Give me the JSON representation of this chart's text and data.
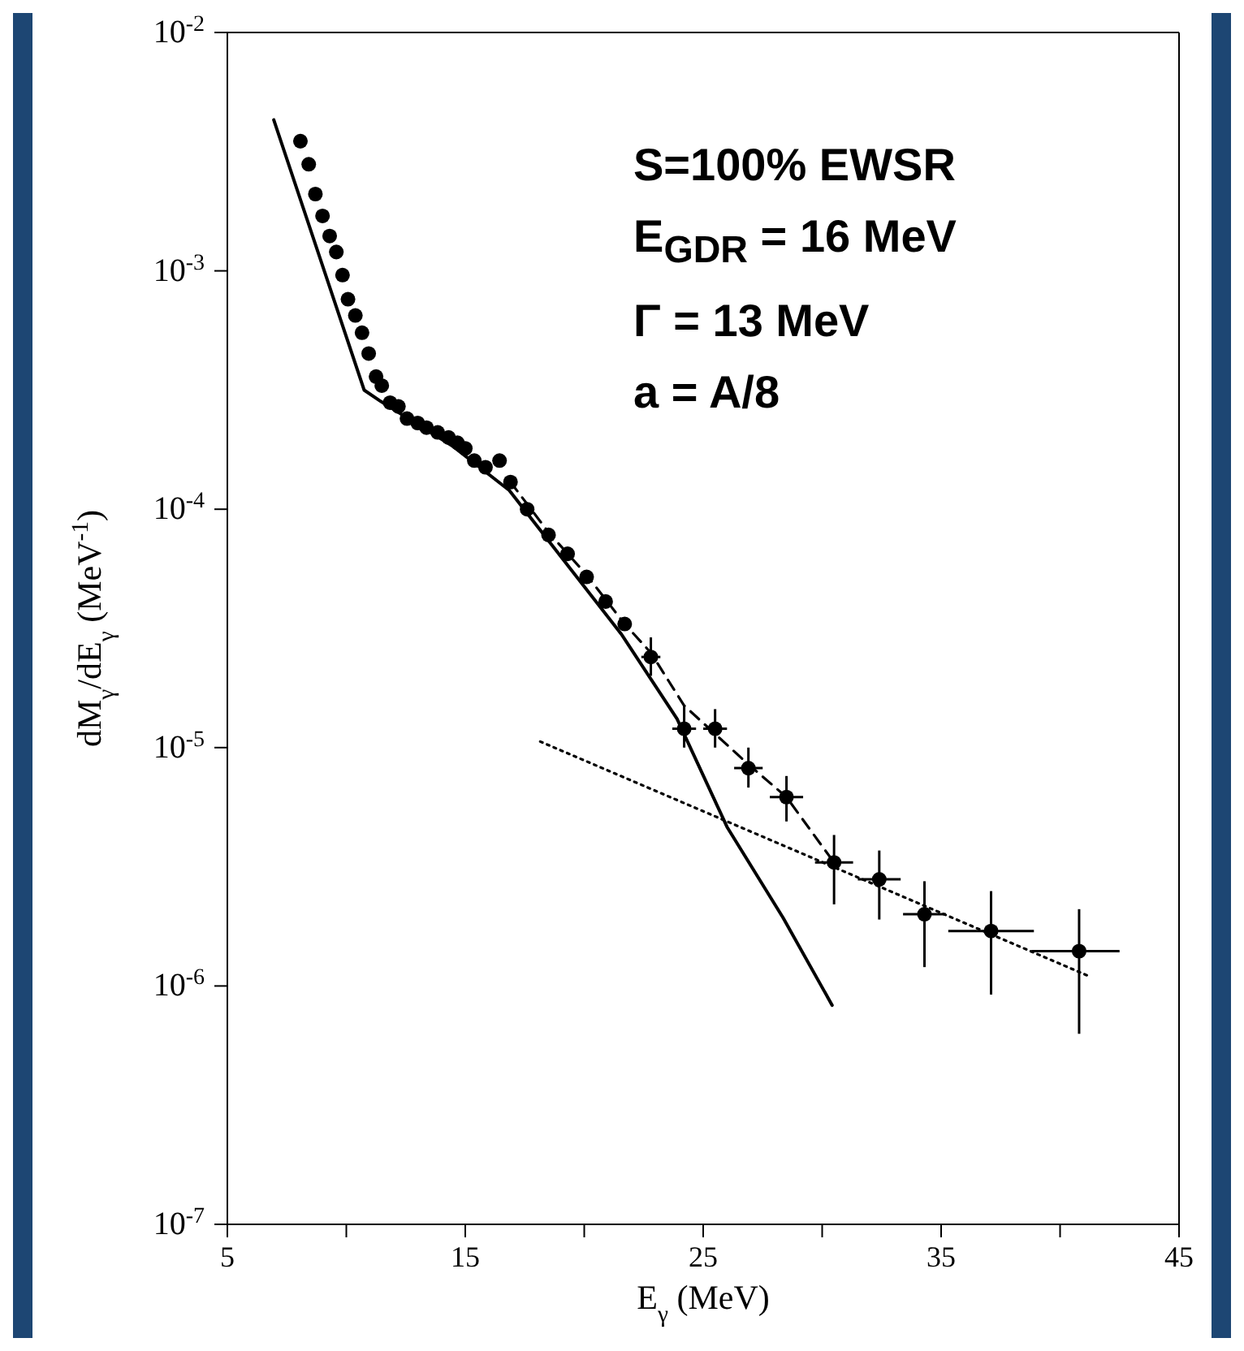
{
  "chart_data": {
    "type": "scatter",
    "xlabel": "E$_{γ}$ (MeV)",
    "ylabel": "dM$_{γ}$/dE$_{γ}$ (MeV$^{-1}$)",
    "log": "y",
    "xlim": [
      5,
      45
    ],
    "xticks": [
      5,
      {
        "value": 10,
        "label": null
      },
      15,
      {
        "value": 20,
        "label": null
      },
      25,
      {
        "value": 30,
        "label": null
      },
      35,
      {
        "value": 40,
        "label": null
      },
      45
    ],
    "ylim": [
      1e-07,
      0.01
    ],
    "yticks": [
      {
        "value": 1e-07,
        "label": "10$^{-7}$"
      },
      {
        "value": 1e-06,
        "label": "10$^{-6}$"
      },
      {
        "value": 1e-05,
        "label": "10$^{-5}$"
      },
      {
        "value": 0.0001,
        "label": "10$^{-4}$"
      },
      {
        "value": 0.001,
        "label": "10$^{-3}$"
      },
      {
        "value": 0.01,
        "label": "10$^{-2}$"
      }
    ],
    "annotations": [
      "S=100% EWSR",
      "E$_{GDR}$ = 16 MeV",
      "Γ = 13 MeV",
      "a = A/8"
    ],
    "series": [
      {
        "color": "#000000",
        "marker": "circle",
        "x": [
          8.07,
          8.42,
          8.7,
          9.0,
          9.3,
          9.58,
          9.84,
          10.07,
          10.38,
          10.66,
          10.94,
          11.25,
          11.49,
          11.84,
          12.19,
          12.55,
          13.0,
          13.37,
          13.84,
          14.3,
          14.67,
          15.0,
          15.38,
          15.85,
          16.44,
          16.9,
          17.6,
          18.5,
          19.3,
          20.1,
          20.9,
          21.7,
          22.8,
          24.2,
          25.5,
          26.9,
          28.5,
          30.5,
          32.4,
          34.3,
          37.1,
          40.8
        ],
        "values": [
          0.0035,
          0.0028,
          0.0021,
          0.0017,
          0.0014,
          0.0012,
          0.00096,
          0.00076,
          0.00065,
          0.00055,
          0.00045,
          0.00036,
          0.00033,
          0.00028,
          0.00027,
          0.00024,
          0.00023,
          0.00022,
          0.00021,
          0.0002,
          0.00019,
          0.00018,
          0.00016,
          0.00015,
          0.00016,
          0.00013,
          0.0001,
          7.8e-05,
          6.5e-05,
          5.2e-05,
          4.1e-05,
          3.3e-05,
          2.4e-05,
          1.2e-05,
          1.2e-05,
          8.2e-06,
          6.2e-06,
          3.3e-06,
          2.8e-06,
          2e-06,
          1.7e-06,
          1.4e-06
        ],
        "errors": [
          null,
          null,
          null,
          null,
          null,
          null,
          null,
          null,
          null,
          null,
          null,
          null,
          null,
          null,
          null,
          null,
          null,
          null,
          null,
          null,
          null,
          null,
          null,
          null,
          null,
          null,
          null,
          null,
          null,
          null,
          null,
          null,
          [
            2e-05,
            2.9e-05
          ],
          [
            1e-05,
            1.5e-05
          ],
          [
            1e-05,
            1.45e-05
          ],
          [
            6.8e-06,
            1e-05
          ],
          [
            4.9e-06,
            7.6e-06
          ],
          [
            2.2e-06,
            4.3e-06
          ],
          [
            1.9e-06,
            3.7e-06
          ],
          [
            1.2e-06,
            2.75e-06
          ],
          [
            9.2e-07,
            2.5e-06
          ],
          [
            6.3e-07,
            2.1e-06
          ]
        ],
        "xerrors": [
          null,
          null,
          null,
          null,
          null,
          null,
          null,
          null,
          null,
          null,
          null,
          null,
          null,
          null,
          null,
          null,
          null,
          null,
          null,
          null,
          null,
          null,
          null,
          null,
          null,
          null,
          null,
          null,
          null,
          null,
          null,
          null,
          0.4,
          0.5,
          0.5,
          0.6,
          0.7,
          0.8,
          0.9,
          0.9,
          [
            35.3,
            38.9
          ],
          [
            38.8,
            42.5
          ]
        ]
      },
      {
        "type": "line",
        "color": "#000000",
        "line_style": "solid",
        "marker": "none",
        "x": [
          6.95,
          10.75,
          11.46,
          14.5,
          16.85,
          21.55,
          23.9,
          26.0,
          28.36,
          30.42
        ],
        "values": [
          0.0043,
          0.000316,
          0.000283,
          0.000183,
          0.00012,
          3e-05,
          1.32e-05,
          4.65e-06,
          1.93e-06,
          8.3e-07
        ]
      },
      {
        "type": "line",
        "color": "#000000",
        "line_style": "dashed",
        "marker": "none",
        "x": [
          16.9,
          18.5,
          20.1,
          21.7,
          22.8,
          24.2,
          26.9,
          28.5,
          30.4
        ],
        "values": [
          0.00013,
          8e-05,
          5.3e-05,
          3.3e-05,
          2.5e-05,
          1.5e-05,
          8.5e-06,
          6.2e-06,
          3.4e-06
        ]
      },
      {
        "type": "line",
        "color": "#000000",
        "line_style": "dotted",
        "marker": "none",
        "x": [
          18.15,
          41.3
        ],
        "values": [
          1.06e-05,
          1.09e-06
        ]
      }
    ]
  }
}
